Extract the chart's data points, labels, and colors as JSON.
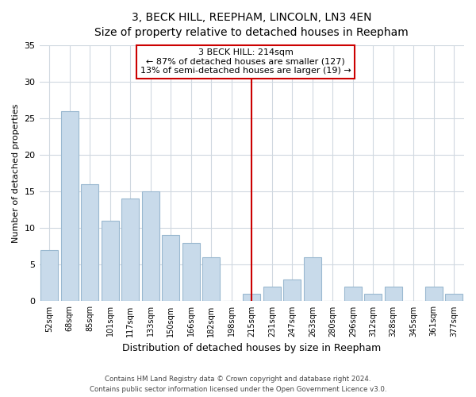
{
  "title": "3, BECK HILL, REEPHAM, LINCOLN, LN3 4EN",
  "subtitle": "Size of property relative to detached houses in Reepham",
  "xlabel": "Distribution of detached houses by size in Reepham",
  "ylabel": "Number of detached properties",
  "bar_labels": [
    "52sqm",
    "68sqm",
    "85sqm",
    "101sqm",
    "117sqm",
    "133sqm",
    "150sqm",
    "166sqm",
    "182sqm",
    "198sqm",
    "215sqm",
    "231sqm",
    "247sqm",
    "263sqm",
    "280sqm",
    "296sqm",
    "312sqm",
    "328sqm",
    "345sqm",
    "361sqm",
    "377sqm"
  ],
  "bar_values": [
    7,
    26,
    16,
    11,
    14,
    15,
    9,
    8,
    6,
    0,
    1,
    2,
    3,
    6,
    0,
    2,
    1,
    2,
    0,
    2,
    1
  ],
  "bar_color": "#c8daea",
  "bar_edge_color": "#9ab8d0",
  "marker_index": 10,
  "marker_line_color": "#cc0000",
  "ylim": [
    0,
    35
  ],
  "yticks": [
    0,
    5,
    10,
    15,
    20,
    25,
    30,
    35
  ],
  "annotation_title": "3 BECK HILL: 214sqm",
  "annotation_line1": "← 87% of detached houses are smaller (127)",
  "annotation_line2": "13% of semi-detached houses are larger (19) →",
  "annotation_box_color": "#ffffff",
  "annotation_box_edge_color": "#cc0000",
  "footer_line1": "Contains HM Land Registry data © Crown copyright and database right 2024.",
  "footer_line2": "Contains public sector information licensed under the Open Government Licence v3.0.",
  "background_color": "#ffffff",
  "grid_color": "#d0d8e0"
}
